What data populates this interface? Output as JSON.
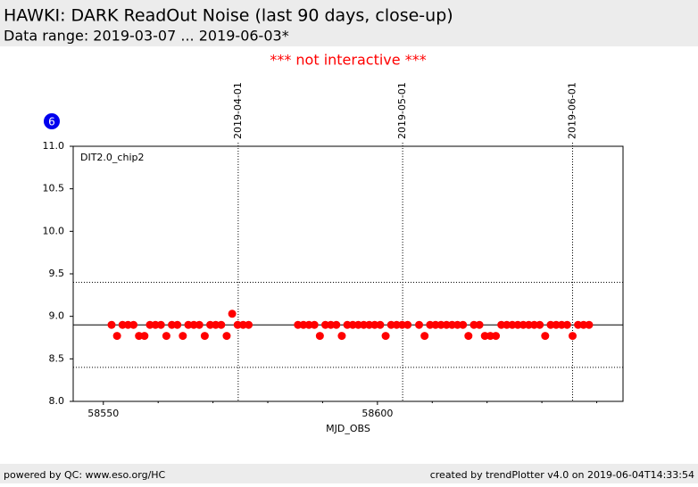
{
  "chart_data": {
    "type": "scatter",
    "title": "HAWKI: DARK ReadOut Noise (last 90 days, close-up)",
    "subtitle": "Data range: 2019-03-07 ... 2019-06-03*",
    "notice": "*** not interactive ***",
    "badge": "6",
    "annotation": "DIT2.0_chip2",
    "x_label": "MJD_OBS",
    "footer_left": "powered by QC: www.eso.org/HC",
    "footer_right": "created by trendPlotter v4.0 on 2019-06-04T14:33:54",
    "color": "#ff0000",
    "x": [
      58551.5,
      58552.5,
      58553.5,
      58554.5,
      58555.5,
      58556.5,
      58557.5,
      58558.5,
      58559.5,
      58560.5,
      58561.5,
      58562.5,
      58563.5,
      58564.5,
      58565.5,
      58566.5,
      58567.5,
      58568.5,
      58569.5,
      58570.5,
      58571.5,
      58572.5,
      58573.5,
      58574.5,
      58575.5,
      58576.5,
      58585.5,
      58586.5,
      58587.5,
      58588.5,
      58589.5,
      58590.5,
      58591.5,
      58592.5,
      58593.5,
      58594.5,
      58595.5,
      58596.5,
      58597.5,
      58598.5,
      58599.5,
      58600.5,
      58601.5,
      58602.5,
      58603.5,
      58604.5,
      58605.5,
      58607.6,
      58608.6,
      58609.6,
      58610.6,
      58611.6,
      58612.6,
      58613.6,
      58614.6,
      58615.6,
      58616.6,
      58617.6,
      58618.6,
      58619.6,
      58620.6,
      58621.6,
      58622.6,
      58623.6,
      58624.6,
      58625.6,
      58626.6,
      58627.6,
      58628.6,
      58629.6,
      58630.6,
      58631.6,
      58632.6,
      58633.6,
      58634.6,
      58635.6,
      58636.6,
      58637.6,
      58638.6
    ],
    "values": [
      8.9,
      8.77,
      8.9,
      8.9,
      8.9,
      8.77,
      8.77,
      8.9,
      8.9,
      8.9,
      8.77,
      8.9,
      8.9,
      8.77,
      8.9,
      8.9,
      8.9,
      8.77,
      8.9,
      8.9,
      8.9,
      8.77,
      9.03,
      8.9,
      8.9,
      8.9,
      8.9,
      8.9,
      8.9,
      8.9,
      8.77,
      8.9,
      8.9,
      8.9,
      8.77,
      8.9,
      8.9,
      8.9,
      8.9,
      8.9,
      8.9,
      8.9,
      8.77,
      8.9,
      8.9,
      8.9,
      8.9,
      8.9,
      8.77,
      8.9,
      8.9,
      8.9,
      8.9,
      8.9,
      8.9,
      8.9,
      8.77,
      8.9,
      8.9,
      8.77,
      8.77,
      8.77,
      8.9,
      8.9,
      8.9,
      8.9,
      8.9,
      8.9,
      8.9,
      8.9,
      8.77,
      8.9,
      8.9,
      8.9,
      8.9,
      8.77,
      8.9,
      8.9,
      8.9
    ],
    "mean_line": 8.9,
    "limit_lines": [
      9.4,
      8.4
    ],
    "xlim": [
      58544.5,
      58644.8
    ],
    "ylim": [
      8.0,
      11.0
    ],
    "xticks": [
      58550,
      58600
    ],
    "xminorticks": [
      58560,
      58570,
      58580,
      58590,
      58610,
      58620,
      58630,
      58640
    ],
    "yticks": [
      {
        "value": 8.0,
        "label": "8.0"
      },
      {
        "value": 8.5,
        "label": "8.5"
      },
      {
        "value": 9.0,
        "label": "9.0"
      },
      {
        "value": 9.5,
        "label": "9.5"
      },
      {
        "value": 10.0,
        "label": "10.0"
      },
      {
        "value": 10.5,
        "label": "10.5"
      },
      {
        "value": 11.0,
        "label": "11.0"
      }
    ],
    "date_ticks": [
      {
        "value": 58574.6,
        "label": "2019-04-01"
      },
      {
        "value": 58604.6,
        "label": "2019-05-01"
      },
      {
        "value": 58635.6,
        "label": "2019-06-01"
      }
    ]
  }
}
